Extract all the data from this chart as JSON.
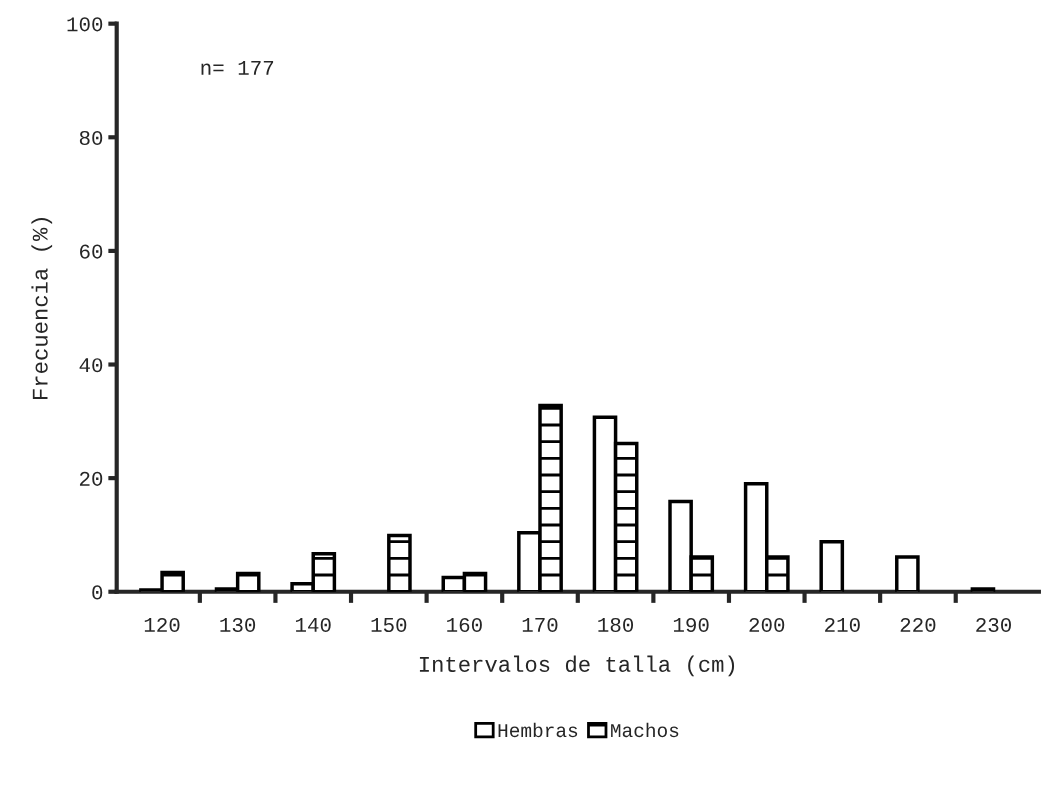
{
  "chart_data": {
    "type": "bar",
    "xlabel": "Intervalos de talla (cm)",
    "ylabel": "Frecuencia (%)",
    "categories": [
      "120",
      "130",
      "140",
      "150",
      "160",
      "170",
      "180",
      "190",
      "200",
      "210",
      "220",
      "230"
    ],
    "series": [
      {
        "name": "Hembras",
        "color": "#000000",
        "values": [
          0.3,
          0.5,
          1.4,
          null,
          2.5,
          10.4,
          30.7,
          15.9,
          19,
          8.8,
          6.1,
          0.5
        ]
      },
      {
        "name": "Machos",
        "color": "#000000",
        "values": [
          3.4,
          3.2,
          6.7,
          9.9,
          3.2,
          32.8,
          26.1,
          6.1,
          6.1,
          null,
          null,
          null
        ]
      }
    ],
    "ylim": [
      0,
      100
    ],
    "yticks": [
      0,
      20,
      40,
      60,
      80,
      100
    ],
    "grid": false,
    "legend": "bottom",
    "annotations": [
      "n= 177"
    ]
  }
}
